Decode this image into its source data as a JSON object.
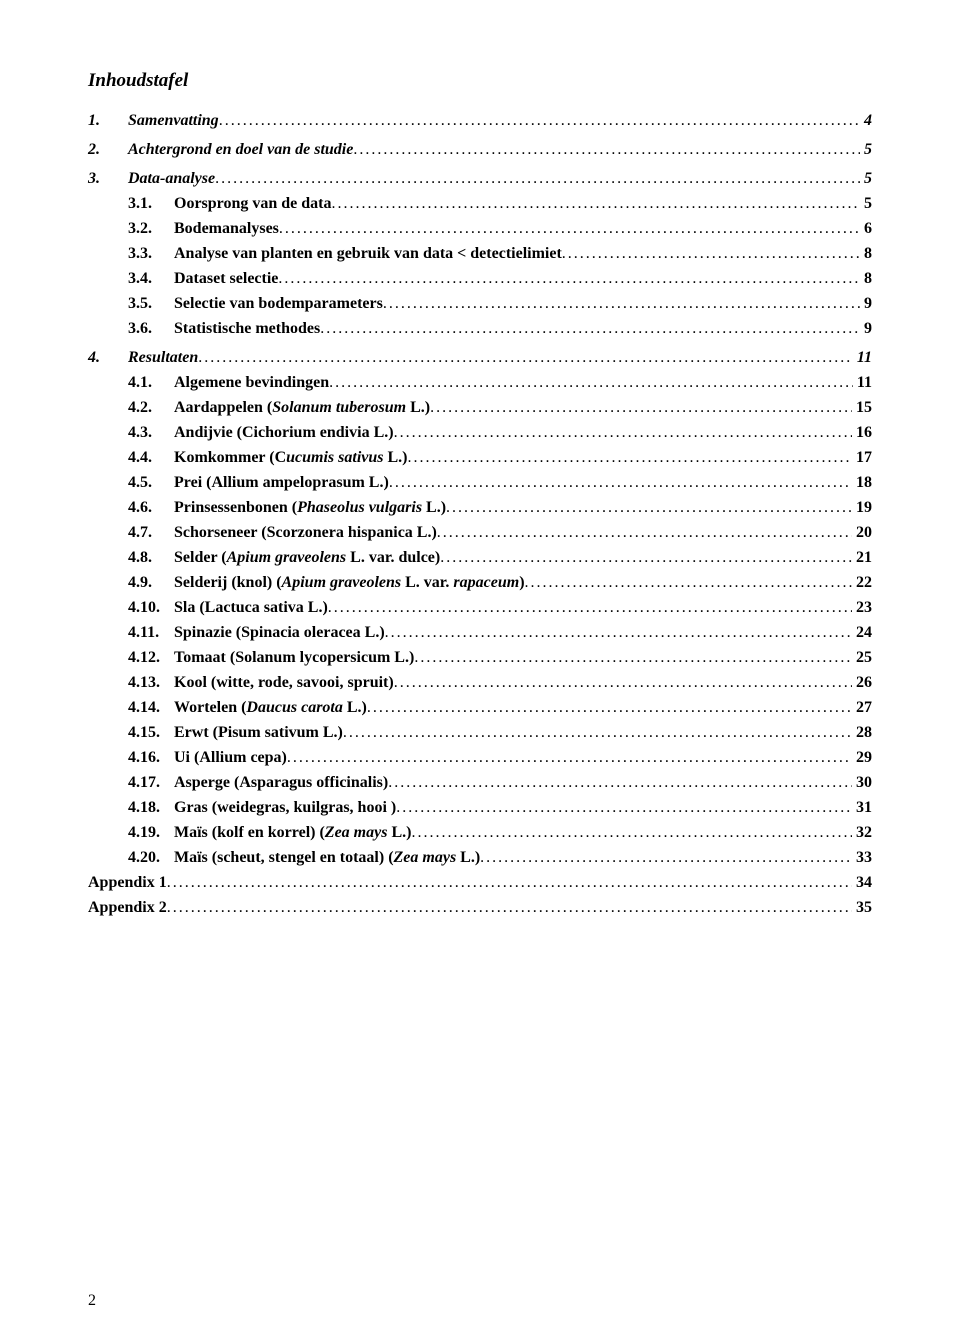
{
  "title": "Inhoudstafel",
  "page_number": "2",
  "colors": {
    "text": "#000000",
    "background": "#ffffff"
  },
  "typography": {
    "family": "Times New Roman",
    "title_size": 19,
    "entry_size": 16
  },
  "entries": [
    {
      "level": 1,
      "num": "1.",
      "text": "Samenvatting",
      "page": "4"
    },
    {
      "level": 1,
      "num": "2.",
      "text": "Achtergrond en doel van de studie",
      "page": "5"
    },
    {
      "level": 1,
      "num": "3.",
      "text": "Data-analyse",
      "page": "5"
    },
    {
      "level": 2,
      "num": "3.1.",
      "text": "Oorsprong van de data",
      "page": "5"
    },
    {
      "level": 2,
      "num": "3.2.",
      "text": "Bodemanalyses",
      "page": "6"
    },
    {
      "level": 2,
      "num": "3.3.",
      "text": "Analyse van planten en gebruik van data < detectielimiet",
      "page": "8"
    },
    {
      "level": 2,
      "num": "3.4.",
      "text": "Dataset selectie",
      "page": "8"
    },
    {
      "level": 2,
      "num": "3.5.",
      "text": "Selectie van bodemparameters",
      "page": "9"
    },
    {
      "level": 2,
      "num": "3.6.",
      "text": "Statistische methodes",
      "page": "9"
    },
    {
      "level": 1,
      "num": "4.",
      "text": "Resultaten",
      "page": "11"
    },
    {
      "level": 2,
      "num": "4.1.",
      "text": "Algemene bevindingen",
      "page": "11"
    },
    {
      "level": 2,
      "num": "4.2.",
      "text_html": "Aardappelen (<i>Solanum tuberosum</i> L.)",
      "page": "15"
    },
    {
      "level": 2,
      "num": "4.3.",
      "text": "Andijvie (Cichorium endivia L.)",
      "page": "16"
    },
    {
      "level": 2,
      "num": "4.4.",
      "text_html": "Komkommer (C<i>ucumis sativus</i> L.)",
      "page": "17"
    },
    {
      "level": 2,
      "num": "4.5.",
      "text": "Prei (Allium ampeloprasum L.)",
      "page": "18"
    },
    {
      "level": 2,
      "num": "4.6.",
      "text_html": "Prinsessenbonen (<i>Phaseolus vulgaris</i> L.)",
      "page": "19"
    },
    {
      "level": 2,
      "num": "4.7.",
      "text": "Schorseneer (Scorzonera hispanica L.)",
      "page": "20"
    },
    {
      "level": 2,
      "num": "4.8.",
      "text_html": "Selder (<i>Apium graveolens</i> L. var. dulce)",
      "page": "21"
    },
    {
      "level": 2,
      "num": "4.9.",
      "text_html": "Selderij (knol) (<i>Apium graveolens</i> L. var. <i>rapaceum</i>)",
      "page": "22"
    },
    {
      "level": 2,
      "num": "4.10.",
      "text": "Sla (Lactuca sativa L.)",
      "page": "23"
    },
    {
      "level": 2,
      "num": "4.11.",
      "text": "Spinazie (Spinacia oleracea L.)",
      "page": "24"
    },
    {
      "level": 2,
      "num": "4.12.",
      "text": "Tomaat (Solanum lycopersicum L.)",
      "page": "25"
    },
    {
      "level": 2,
      "num": "4.13.",
      "text": "Kool (witte, rode, savooi, spruit)",
      "page": "26"
    },
    {
      "level": 2,
      "num": "4.14.",
      "text_html": "Wortelen (<i>Daucus carota</i> L.)",
      "page": "27"
    },
    {
      "level": 2,
      "num": "4.15.",
      "text": "Erwt (Pisum sativum L.)",
      "page": "28"
    },
    {
      "level": 2,
      "num": "4.16.",
      "text": "Ui (Allium cepa)",
      "page": "29"
    },
    {
      "level": 2,
      "num": "4.17.",
      "text": "Asperge (Asparagus officinalis)",
      "page": "30"
    },
    {
      "level": 2,
      "num": "4.18.",
      "text": "Gras (weidegras, kuilgras, hooi )",
      "page": "31"
    },
    {
      "level": 2,
      "num": "4.19.",
      "text_html": "Maïs (kolf en korrel) (<i>Zea mays</i> L.)",
      "page": "32"
    },
    {
      "level": 2,
      "num": "4.20.",
      "text_html": "Maïs (scheut, stengel en totaal) (<i>Zea mays</i> L.)",
      "page": "33"
    },
    {
      "level": "appendix",
      "num": "",
      "text": "Appendix 1",
      "page": "34"
    },
    {
      "level": "appendix",
      "num": "",
      "text": "Appendix 2",
      "page": "35"
    }
  ]
}
